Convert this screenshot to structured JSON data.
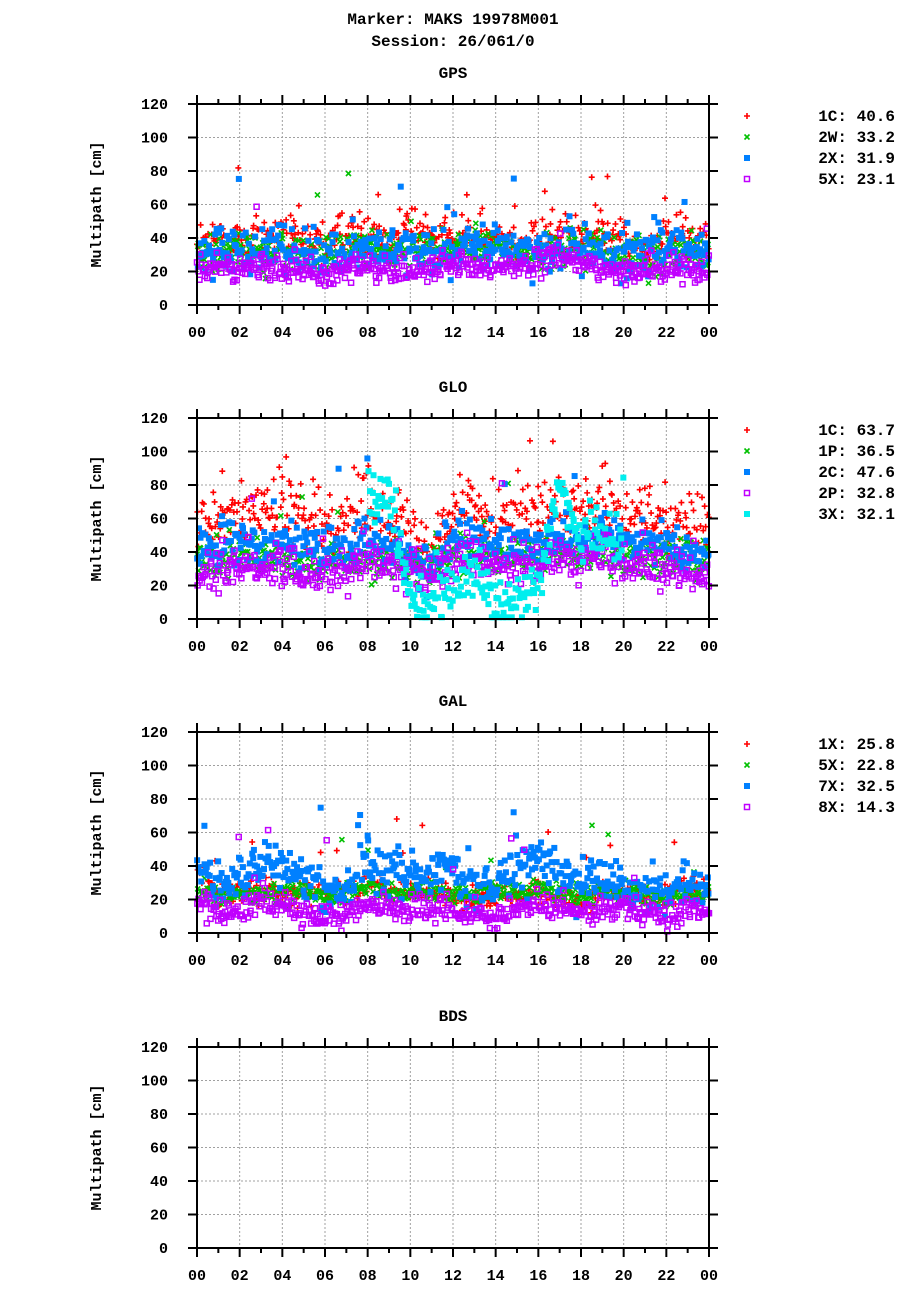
{
  "title_line1": "Marker: MAKS 19978M001",
  "title_line2": "Session: 26/061/0",
  "colors": {
    "red": "#ff0000",
    "green": "#00c000",
    "blue": "#0080ff",
    "purple": "#c000ff",
    "cyan": "#00eeee"
  },
  "chart_data": [
    {
      "type": "scatter",
      "title": "GPS",
      "ylabel": "Multipath [cm]",
      "ylim": [
        0,
        120
      ],
      "yticks": [
        "0",
        "20",
        "40",
        "60",
        "80",
        "100",
        "120"
      ],
      "xticks": [
        "00",
        "02",
        "04",
        "06",
        "08",
        "10",
        "12",
        "14",
        "16",
        "18",
        "20",
        "22",
        "00"
      ],
      "x_unit_range_hours": [
        0,
        24
      ],
      "grid": true,
      "legend": "right",
      "series": [
        {
          "name": "1C: 40.6",
          "marker": "plus",
          "color": "#ff0000",
          "hourly_median": [
            35,
            38,
            40,
            38,
            42,
            40,
            38,
            42,
            45,
            38,
            45,
            40,
            40,
            38,
            42,
            38,
            36,
            45,
            42,
            44,
            36,
            34,
            40,
            42,
            38
          ],
          "spread": 7
        },
        {
          "name": "2W: 33.2",
          "marker": "cross",
          "color": "#00c000",
          "hourly_median": [
            30,
            32,
            34,
            30,
            32,
            30,
            30,
            35,
            36,
            30,
            35,
            34,
            32,
            34,
            36,
            30,
            30,
            34,
            36,
            36,
            28,
            28,
            32,
            32,
            30
          ],
          "spread": 6
        },
        {
          "name": "2X: 31.9",
          "marker": "square",
          "color": "#0080ff",
          "hourly_median": [
            30,
            36,
            36,
            34,
            34,
            32,
            30,
            32,
            36,
            32,
            34,
            34,
            30,
            34,
            36,
            32,
            30,
            32,
            36,
            32,
            28,
            28,
            34,
            36,
            32
          ],
          "spread": 7
        },
        {
          "name": "5X: 23.1",
          "marker": "open-square",
          "color": "#c000ff",
          "hourly_median": [
            22,
            22,
            20,
            22,
            22,
            22,
            18,
            20,
            24,
            20,
            20,
            22,
            22,
            22,
            22,
            24,
            24,
            30,
            26,
            20,
            20,
            20,
            22,
            22,
            22
          ],
          "spread": 4
        }
      ]
    },
    {
      "type": "scatter",
      "title": "GLO",
      "ylabel": "Multipath [cm]",
      "ylim": [
        0,
        120
      ],
      "yticks": [
        "0",
        "20",
        "40",
        "60",
        "80",
        "100",
        "120"
      ],
      "xticks": [
        "00",
        "02",
        "04",
        "06",
        "08",
        "10",
        "12",
        "14",
        "16",
        "18",
        "20",
        "22",
        "00"
      ],
      "x_unit_range_hours": [
        0,
        24
      ],
      "grid": true,
      "legend": "right",
      "series": [
        {
          "name": "1C: 63.7",
          "marker": "plus",
          "color": "#ff0000",
          "hourly_median": [
            58,
            65,
            68,
            60,
            70,
            60,
            60,
            62,
            68,
            65,
            55,
            45,
            62,
            68,
            58,
            60,
            60,
            68,
            62,
            65,
            60,
            65,
            60,
            55,
            55
          ],
          "spread": 10
        },
        {
          "name": "1P: 36.5",
          "marker": "cross",
          "color": "#00c000",
          "hourly_median": [
            35,
            36,
            38,
            36,
            36,
            34,
            34,
            36,
            36,
            36,
            36,
            32,
            36,
            38,
            36,
            36,
            36,
            38,
            40,
            40,
            36,
            38,
            36,
            34,
            34
          ],
          "spread": 6
        },
        {
          "name": "2C: 47.6",
          "marker": "square",
          "color": "#0080ff",
          "hourly_median": [
            42,
            42,
            48,
            45,
            48,
            42,
            40,
            42,
            48,
            46,
            36,
            30,
            48,
            50,
            42,
            46,
            45,
            48,
            46,
            50,
            44,
            48,
            44,
            40,
            40
          ],
          "spread": 7
        },
        {
          "name": "2P: 32.8",
          "marker": "open-square",
          "color": "#c000ff",
          "hourly_median": [
            28,
            28,
            34,
            32,
            30,
            28,
            28,
            30,
            34,
            32,
            28,
            26,
            34,
            36,
            30,
            36,
            32,
            38,
            34,
            40,
            32,
            32,
            28,
            26,
            26
          ],
          "spread": 6
        },
        {
          "name": "3X: 32.1",
          "marker": "square",
          "color": "#00eeee",
          "hourly_median": [
            null,
            null,
            null,
            null,
            null,
            null,
            null,
            null,
            70,
            75,
            12,
            10,
            20,
            28,
            10,
            12,
            18,
            80,
            48,
            52,
            42,
            null,
            null,
            null,
            null
          ],
          "spread": 8
        }
      ]
    },
    {
      "type": "scatter",
      "title": "GAL",
      "ylabel": "Multipath [cm]",
      "ylim": [
        0,
        120
      ],
      "yticks": [
        "0",
        "20",
        "40",
        "60",
        "80",
        "100",
        "120"
      ],
      "xticks": [
        "00",
        "02",
        "04",
        "06",
        "08",
        "10",
        "12",
        "14",
        "16",
        "18",
        "20",
        "22",
        "00"
      ],
      "x_unit_range_hours": [
        0,
        24
      ],
      "grid": true,
      "legend": "right",
      "series": [
        {
          "name": "1X: 25.8",
          "marker": "plus",
          "color": "#ff0000",
          "hourly_median": [
            40,
            22,
            24,
            24,
            26,
            24,
            24,
            22,
            30,
            26,
            24,
            24,
            24,
            20,
            22,
            24,
            24,
            20,
            20,
            24,
            24,
            22,
            22,
            26,
            26
          ],
          "spread": 4
        },
        {
          "name": "5X: 22.8",
          "marker": "cross",
          "color": "#00c000",
          "hourly_median": [
            24,
            22,
            24,
            24,
            24,
            24,
            22,
            24,
            26,
            24,
            24,
            26,
            24,
            22,
            24,
            24,
            26,
            24,
            22,
            24,
            24,
            22,
            22,
            24,
            24
          ],
          "spread": 3
        },
        {
          "name": "7X: 32.5",
          "marker": "square",
          "color": "#0080ff",
          "hourly_median": [
            40,
            28,
            32,
            42,
            40,
            34,
            22,
            24,
            42,
            36,
            36,
            40,
            38,
            28,
            30,
            38,
            44,
            34,
            28,
            30,
            28,
            26,
            26,
            30,
            30
          ],
          "spread": 7
        },
        {
          "name": "8X: 14.3",
          "marker": "open-square",
          "color": "#c000ff",
          "hourly_median": [
            20,
            12,
            14,
            18,
            16,
            12,
            10,
            12,
            18,
            14,
            14,
            14,
            14,
            10,
            10,
            14,
            18,
            14,
            12,
            14,
            14,
            10,
            10,
            14,
            14
          ],
          "spread": 4
        }
      ]
    },
    {
      "type": "scatter",
      "title": "BDS",
      "ylabel": "Multipath [cm]",
      "ylim": [
        0,
        120
      ],
      "yticks": [
        "0",
        "20",
        "40",
        "60",
        "80",
        "100",
        "120"
      ],
      "xticks": [
        "00",
        "02",
        "04",
        "06",
        "08",
        "10",
        "12",
        "14",
        "16",
        "18",
        "20",
        "22",
        "00"
      ],
      "x_unit_range_hours": [
        0,
        24
      ],
      "grid": true,
      "legend": "right",
      "series": []
    }
  ]
}
